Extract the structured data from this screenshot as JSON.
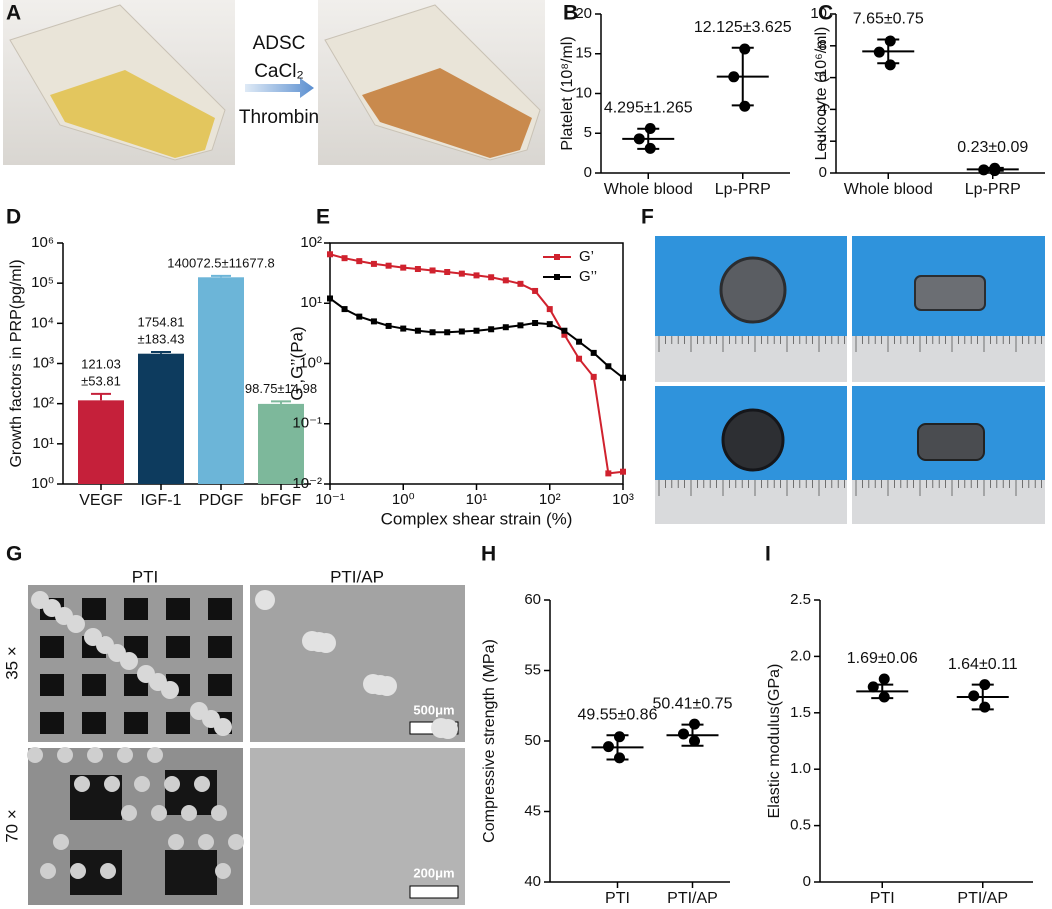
{
  "figure": {
    "panel_labels": [
      "A",
      "B",
      "C",
      "D",
      "E",
      "F",
      "G",
      "H",
      "I"
    ],
    "arrow_labels": [
      "ADSC",
      "CaCl₂",
      "Thrombin"
    ],
    "column_labels": [
      "PTI",
      "PTI/AP"
    ],
    "row_labels": [
      "35 ×",
      "70 ×"
    ],
    "scale_bars": [
      "500μm",
      "200μm"
    ]
  },
  "chart_data": [
    {
      "type": "dot",
      "ylabel": "Platelet  (10⁸/ml)",
      "categories": [
        "Whole blood",
        "Lp-PRP"
      ],
      "points": [
        [
          5.6,
          4.3,
          3.1
        ],
        [
          15.6,
          12.1,
          8.4
        ]
      ],
      "values": [
        4.295,
        12.125
      ],
      "errors": [
        1.265,
        3.625
      ],
      "value_labels": [
        "4.295±1.265",
        "12.125±3.625"
      ],
      "ylim": [
        0,
        20
      ],
      "yticks": [
        0,
        5,
        10,
        15,
        20
      ],
      "color": "#000000"
    },
    {
      "type": "dot",
      "ylabel": "Leukocyte (10⁶/ml)",
      "categories": [
        "Whole blood",
        "Lp-PRP"
      ],
      "points": [
        [
          8.3,
          7.6,
          6.8
        ],
        [
          0.3,
          0.2,
          0.15
        ]
      ],
      "values": [
        7.65,
        0.23
      ],
      "errors": [
        0.75,
        0.09
      ],
      "value_labels": [
        "7.65±0.75",
        "0.23±0.09"
      ],
      "ylim": [
        0,
        10
      ],
      "yticks": [
        0,
        2,
        4,
        6,
        8,
        10
      ],
      "color": "#000000"
    },
    {
      "type": "bar",
      "ylabel": "Growth factors in PRP(pg/ml)",
      "categories": [
        "VEGF",
        "IGF-1",
        "PDGF",
        "bFGF"
      ],
      "values": [
        121.03,
        1754.81,
        140072.5,
        98.75
      ],
      "errors": [
        53.81,
        183.43,
        11677.8,
        14.98
      ],
      "value_labels": [
        [
          "121.03",
          "±53.81"
        ],
        [
          "1754.81",
          "±183.43"
        ],
        [
          "140072.5±11677.8"
        ],
        [
          "98.75±14.98"
        ]
      ],
      "colors": [
        "#c5203a",
        "#0d3b5e",
        "#6cb5d8",
        "#7db89b"
      ],
      "log": true,
      "ylim": [
        1,
        1000000
      ],
      "yticks": [
        {
          "value": 1,
          "label": "10⁰"
        },
        {
          "value": 10,
          "label": "10¹"
        },
        {
          "value": 100,
          "label": "10²"
        },
        {
          "value": 1000,
          "label": "10³"
        },
        {
          "value": 10000,
          "label": "10⁴"
        },
        {
          "value": 100000,
          "label": "10⁵"
        },
        {
          "value": 1000000,
          "label": "10⁶"
        }
      ]
    },
    {
      "type": "line",
      "xlabel": "Complex shear strain (%)",
      "ylabel": "G’,G’’(Pa)",
      "x": [
        0.1,
        0.158,
        0.251,
        0.398,
        0.631,
        1,
        1.585,
        2.512,
        3.981,
        6.31,
        10,
        15.85,
        25.12,
        39.81,
        63.1,
        100,
        158.5,
        251.2,
        398.1,
        631,
        1000
      ],
      "series": [
        {
          "name": "G’",
          "color": "#d0222e",
          "values": [
            65,
            56,
            50,
            45,
            42,
            39,
            37,
            35,
            33,
            31,
            29,
            27,
            24,
            21,
            16,
            8,
            3,
            1.2,
            0.6,
            0.015,
            0.016
          ]
        },
        {
          "name": "G’’",
          "color": "#000000",
          "values": [
            12,
            8,
            6,
            5,
            4.2,
            3.8,
            3.5,
            3.3,
            3.3,
            3.4,
            3.5,
            3.7,
            4,
            4.3,
            4.7,
            4.5,
            3.5,
            2.3,
            1.5,
            0.9,
            0.58
          ]
        }
      ],
      "xlog": true,
      "ylog": true,
      "legend": "upper right",
      "xlim": [
        0.1,
        1000
      ],
      "ylim": [
        0.01,
        100
      ],
      "xticks": [
        {
          "value": 0.1,
          "label": "10⁻¹"
        },
        {
          "value": 1,
          "label": "10⁰"
        },
        {
          "value": 10,
          "label": "10¹"
        },
        {
          "value": 100,
          "label": "10²"
        },
        {
          "value": 1000,
          "label": "10³"
        }
      ],
      "yticks": [
        {
          "value": 0.01,
          "label": "10⁻²"
        },
        {
          "value": 0.1,
          "label": "10⁻¹"
        },
        {
          "value": 1,
          "label": "10⁰"
        },
        {
          "value": 10,
          "label": "10¹"
        },
        {
          "value": 100,
          "label": "10²"
        }
      ]
    },
    {
      "type": "dot",
      "ylabel": "Compressive strength  (MPa)",
      "categories": [
        "PTI",
        "PTI/AP"
      ],
      "points": [
        [
          50.3,
          49.6,
          48.8
        ],
        [
          51.2,
          50.5,
          50.0
        ]
      ],
      "values": [
        49.55,
        50.41
      ],
      "errors": [
        0.86,
        0.75
      ],
      "value_labels": [
        "49.55±0.86",
        "50.41±0.75"
      ],
      "ylim": [
        40,
        60
      ],
      "yticks": [
        40,
        45,
        50,
        55,
        60
      ],
      "color": "#000000"
    },
    {
      "type": "dot",
      "ylabel": "Elastic modulus(GPa)",
      "categories": [
        "PTI",
        "PTI/AP"
      ],
      "points": [
        [
          1.8,
          1.73,
          1.64
        ],
        [
          1.75,
          1.65,
          1.55
        ]
      ],
      "values": [
        1.69,
        1.64
      ],
      "errors": [
        0.06,
        0.11
      ],
      "value_labels": [
        "1.69±0.06",
        "1.64±0.11"
      ],
      "ylim": [
        0,
        2.5
      ],
      "yticks": [
        0,
        0.5,
        {
          "value": 1,
          "label": "1.0"
        },
        1.5,
        {
          "value": 2,
          "label": "2.0"
        },
        2.5
      ],
      "color": "#000000"
    }
  ]
}
